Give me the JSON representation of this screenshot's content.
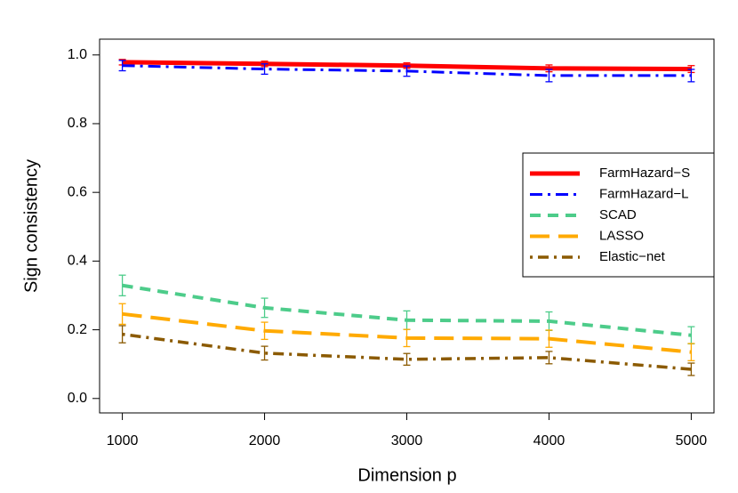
{
  "chart_data": {
    "type": "line",
    "xlabel": "Dimension p",
    "ylabel": "Sign consistency",
    "x": [
      1000,
      2000,
      3000,
      4000,
      5000
    ],
    "xlim": [
      840,
      5160
    ],
    "ylim": [
      -0.042,
      1.046
    ],
    "xticks": [
      1000,
      2000,
      3000,
      4000,
      5000
    ],
    "yticks": [
      {
        "value": 0,
        "label": "0.0"
      },
      0.2,
      0.4,
      0.6,
      0.8,
      {
        "value": 1,
        "label": "1.0"
      }
    ],
    "legend": "right",
    "series": [
      {
        "name": "FarmHazard−S",
        "color": "#ff0000",
        "linestyle": "solid",
        "width": 5,
        "values": [
          0.979,
          0.974,
          0.969,
          0.961,
          0.959
        ],
        "errors": [
          0.008,
          0.008,
          0.008,
          0.01,
          0.01
        ]
      },
      {
        "name": "FarmHazard−L",
        "color": "#0000ff",
        "linestyle": "dashdot",
        "width": 3,
        "values": [
          0.969,
          0.959,
          0.953,
          0.94,
          0.94
        ],
        "errors": [
          0.015,
          0.015,
          0.015,
          0.018,
          0.018
        ]
      },
      {
        "name": "SCAD",
        "color": "#4dcc8a",
        "linestyle": "dashed",
        "width": 4,
        "values": [
          0.329,
          0.264,
          0.228,
          0.225,
          0.184
        ],
        "errors": [
          0.03,
          0.028,
          0.027,
          0.027,
          0.025
        ]
      },
      {
        "name": "LASSO",
        "color": "#ffaa00",
        "linestyle": "longdash",
        "width": 4,
        "values": [
          0.246,
          0.197,
          0.176,
          0.174,
          0.135
        ],
        "errors": [
          0.03,
          0.025,
          0.025,
          0.025,
          0.025
        ]
      },
      {
        "name": "Elastic−net",
        "color": "#8b5a00",
        "linestyle": "dotdash",
        "width": 3.5,
        "values": [
          0.187,
          0.132,
          0.114,
          0.119,
          0.085
        ],
        "errors": [
          0.025,
          0.02,
          0.017,
          0.018,
          0.018
        ]
      }
    ]
  }
}
